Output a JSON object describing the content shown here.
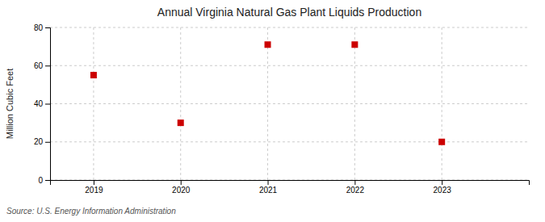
{
  "chart_data": {
    "type": "scatter",
    "title": "Annual Virginia Natural Gas Plant Liquids Production",
    "y_label": "Million Cubic Feet",
    "annotation": "Source: U.S. Energy Information Administration",
    "x": [
      2019,
      2020,
      2021,
      2022,
      2023
    ],
    "values": [
      55,
      30,
      71,
      71,
      20
    ],
    "color": "#cc0000",
    "marker": "square",
    "xlim": [
      2018.5,
      2024.0
    ],
    "xticks": [
      2019,
      2020,
      2021,
      2022,
      2023
    ],
    "ylim": [
      0,
      80
    ],
    "yticks": [
      0,
      20,
      40,
      60,
      80
    ],
    "grid": true
  }
}
